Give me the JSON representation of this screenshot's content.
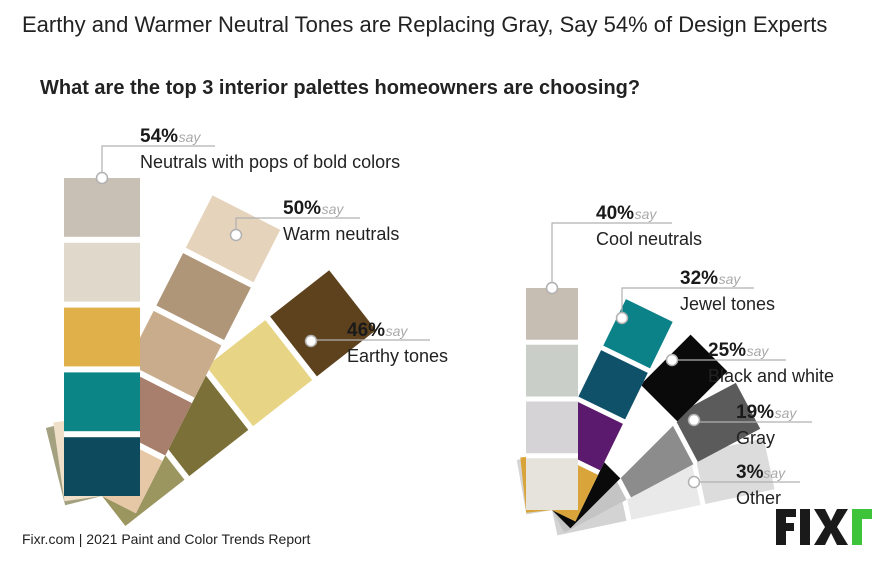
{
  "title": "Earthy and Warmer Neutral Tones are Replacing Gray, Say 54% of Design Experts",
  "subtitle": "What are the top 3 interior palettes homeowners are choosing?",
  "source": "Fixr.com | 2021 Paint and Color Trends Report",
  "logo_text": "FIXr",
  "say_word": "say",
  "colors": {
    "label_pct": "#1a1a1a",
    "say": "#a8a8a8",
    "leader_line": "#b0b0b0",
    "logo_dark": "#1a1a1a",
    "logo_accent": "#3ec43a"
  },
  "chart_data": [
    {
      "type": "bar",
      "presentation": "paint-swatch fan",
      "categories": [
        "Neutrals with pops of bold colors",
        "Warm neutrals",
        "Earthy tones"
      ],
      "values": [
        54,
        50,
        46
      ],
      "unit": "%",
      "labels": [
        "54%",
        "50%",
        "46%"
      ],
      "swatch_colors": [
        [
          "#c8c0b5",
          "#e0d8ca",
          "#e0b04a",
          "#0b8585",
          "#0d4a5e"
        ],
        [
          "#e6d3bb",
          "#b09679",
          "#c8ac8c",
          "#a87f6c",
          "#e6c7a6"
        ],
        [
          "#5e421e",
          "#e7d585",
          "#7b7038",
          "#9b9560"
        ]
      ]
    },
    {
      "type": "bar",
      "presentation": "paint-swatch fan",
      "categories": [
        "Cool neutrals",
        "Jewel tones",
        "Black and white",
        "Gray",
        "Other"
      ],
      "values": [
        40,
        32,
        25,
        19,
        3
      ],
      "unit": "%",
      "labels": [
        "40%",
        "32%",
        "25%",
        "19%",
        "3%"
      ],
      "swatch_colors": [
        [
          "#c6beb3",
          "#c9cec8",
          "#d6d3d7",
          "#e6e3dc"
        ],
        [
          "#0b8188",
          "#10516a",
          "#5b1a6e",
          "#d9a53a"
        ],
        [
          "#0a0a0a",
          "#ffffff",
          "#0a0a0a"
        ],
        [
          "#5b5b5b",
          "#8c8c8c",
          "#c4c4c4"
        ],
        [
          "#dcdcdc",
          "#e9e9e9",
          "#d3d3d3"
        ]
      ]
    }
  ]
}
